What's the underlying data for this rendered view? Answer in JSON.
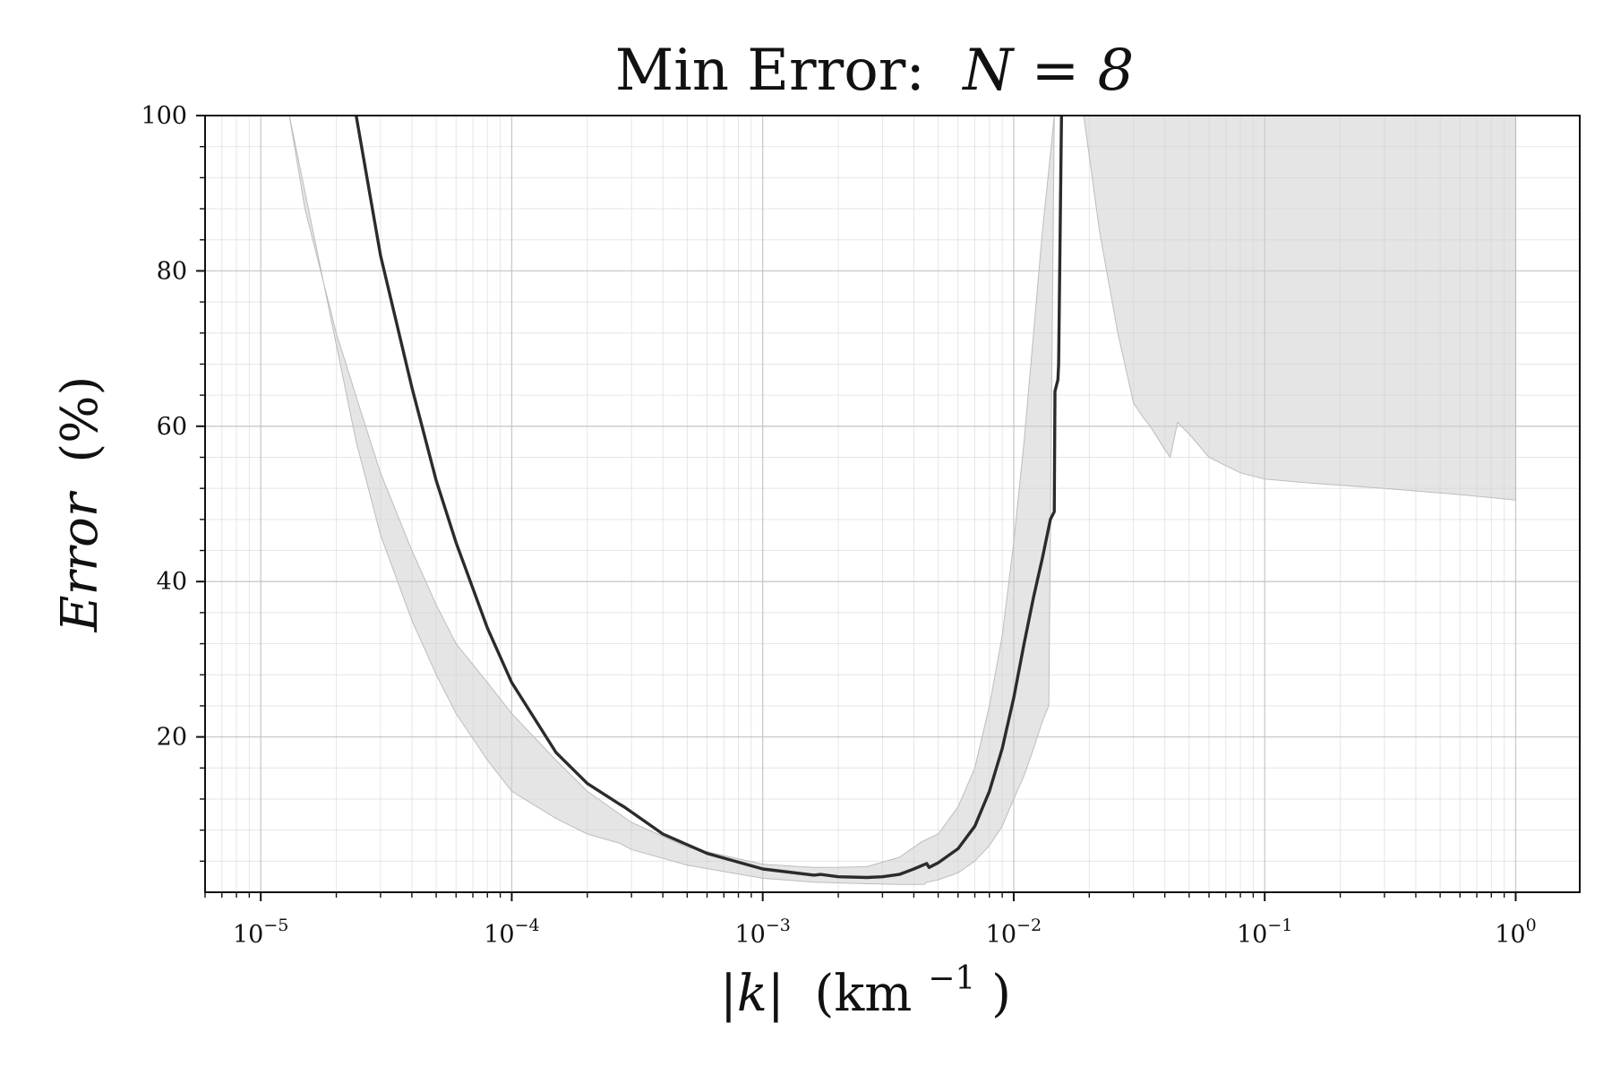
{
  "chart_data": {
    "type": "line",
    "title": "Min Error:",
    "title_math": "N = 8",
    "xlabel": "|k|",
    "xlabel_unit": "(km",
    "xlabel_unit_exp": "−1",
    "xlabel_unit_close": ")",
    "ylabel": "Error",
    "ylabel_unit": "(%)",
    "x_scale": "log",
    "xlim": [
      6e-06,
      1.8
    ],
    "ylim": [
      0,
      100
    ],
    "grid": true,
    "x_ticks": [
      {
        "exp": -5,
        "label_base": "10",
        "label_exp": "−5"
      },
      {
        "exp": -4,
        "label_base": "10",
        "label_exp": "−4"
      },
      {
        "exp": -3,
        "label_base": "10",
        "label_exp": "−3"
      },
      {
        "exp": -2,
        "label_base": "10",
        "label_exp": "−2"
      },
      {
        "exp": -1,
        "label_base": "10",
        "label_exp": "−1"
      },
      {
        "exp": 0,
        "label_base": "10",
        "label_exp": "0"
      }
    ],
    "y_ticks": [
      20,
      40,
      60,
      80,
      100
    ],
    "line_color": "#2b2b2b",
    "band_color": "#cfcfcf",
    "mean_line": {
      "x": [
        2.4e-05,
        3e-05,
        4e-05,
        5e-05,
        6e-05,
        8e-05,
        0.0001,
        0.00015,
        0.0002,
        0.00027,
        0.00028,
        0.0004,
        0.0006,
        0.001,
        0.0016,
        0.0017,
        0.002,
        0.0026,
        0.003,
        0.0035,
        0.004,
        0.0045,
        0.0046,
        0.005,
        0.006,
        0.007,
        0.008,
        0.009,
        0.01,
        0.011,
        0.012,
        0.013,
        0.014,
        0.0145,
        0.0146,
        0.015,
        0.0151,
        0.0155
      ],
      "y": [
        100,
        82,
        65,
        53,
        45,
        34,
        27,
        18,
        14,
        11.3,
        11,
        7.5,
        5,
        3,
        2.2,
        2.3,
        2,
        1.9,
        2,
        2.3,
        3,
        3.7,
        3.2,
        3.8,
        5.6,
        8.5,
        13,
        18.5,
        25,
        32,
        38,
        43,
        48,
        49,
        64.5,
        66,
        68,
        100
      ]
    },
    "band_lower_left": {
      "x": [
        2.4e-05,
        3e-05,
        4e-05,
        5e-05,
        6e-05,
        8e-05,
        0.0001,
        0.00015,
        0.0002,
        0.00027,
        0.0003,
        0.0005,
        0.001,
        0.0016,
        0.0026,
        0.0035,
        0.0044,
        0.0045,
        0.005,
        0.006,
        0.007,
        0.008,
        0.009,
        0.01,
        0.011,
        0.012,
        0.013,
        0.0138
      ],
      "y": [
        58,
        46,
        35,
        28,
        23,
        17,
        13,
        9.5,
        7.5,
        6.3,
        5.5,
        3.5,
        1.8,
        1.3,
        1.1,
        1,
        1,
        1.3,
        1.6,
        2.5,
        4,
        6,
        8.5,
        12,
        15,
        18.5,
        22,
        24
      ]
    },
    "band_upper_left": {
      "x": [
        1.3e-05,
        1.5e-05,
        2e-05,
        2.5e-05,
        3e-05,
        4e-05,
        5e-05,
        6e-05,
        8e-05,
        0.0001,
        0.00015,
        0.0002,
        0.0003,
        0.0005,
        0.001,
        0.0016,
        0.002,
        0.0026,
        0.0035,
        0.0043,
        0.0045,
        0.005,
        0.006,
        0.007,
        0.008,
        0.009,
        0.01,
        0.011,
        0.012,
        0.013,
        0.014,
        0.0145
      ],
      "y": [
        100,
        88,
        72,
        62,
        54,
        44,
        37,
        32,
        27,
        23,
        17,
        13,
        9,
        5.8,
        3.6,
        3.2,
        3.2,
        3.3,
        4.5,
        6.5,
        6.8,
        7.5,
        11,
        16,
        24,
        33,
        45,
        58,
        72,
        85,
        95,
        100
      ]
    },
    "band_right_region": {
      "x": [
        0.019,
        0.022,
        0.026,
        0.03,
        0.033,
        0.035,
        0.04,
        0.042,
        0.045,
        0.05,
        0.06,
        0.08,
        0.1,
        0.15,
        0.3,
        0.6,
        1.0
      ],
      "y": [
        100,
        85,
        72,
        63,
        61,
        60,
        57,
        56,
        60.5,
        59,
        56,
        54,
        53.2,
        52.7,
        52,
        51.2,
        50.5
      ]
    }
  }
}
